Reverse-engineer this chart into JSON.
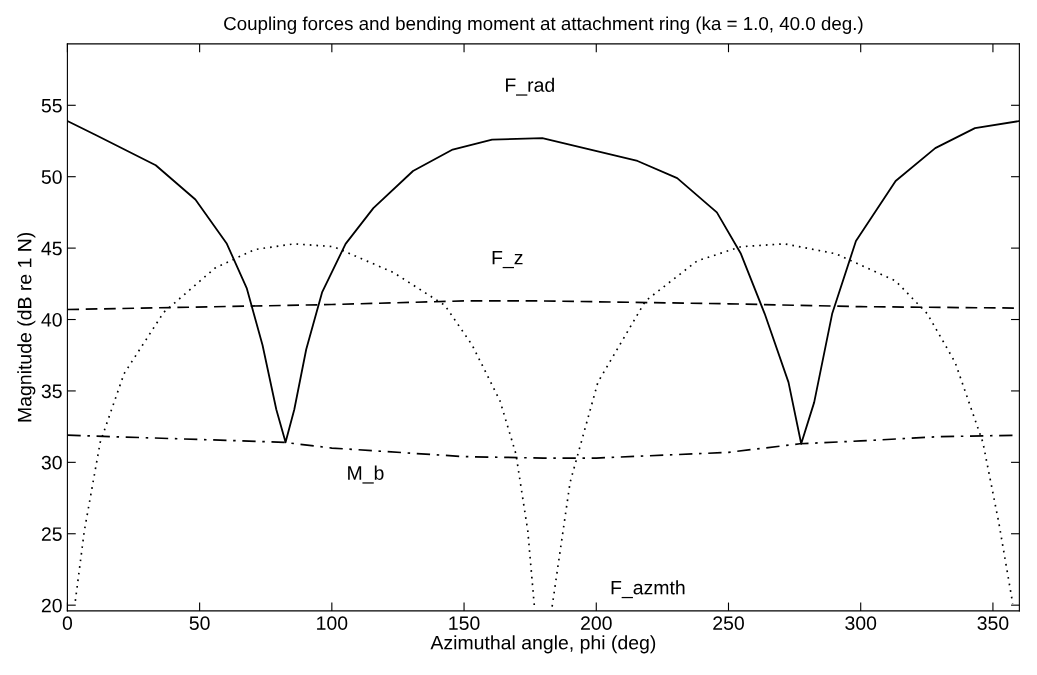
{
  "chart_data": {
    "type": "line",
    "title": "Coupling forces and bending moment at attachment ring (ka = 1.0, 40.0 deg.)",
    "xlabel": "Azimuthal angle, phi (deg)",
    "ylabel": "Magnitude (dB re 1 N)",
    "xlim": [
      0,
      360
    ],
    "ylim": [
      19.6,
      59.3
    ],
    "xticks": [
      0,
      50,
      100,
      150,
      200,
      250,
      300,
      350
    ],
    "yticks": [
      20,
      25,
      30,
      35,
      40,
      45,
      50,
      55
    ],
    "grid": false,
    "legend": false,
    "marker": "none",
    "series": [
      {
        "name": "F_rad",
        "color": "#000000",
        "line_style": "solid",
        "x": [
          0,
          10.9,
          33.4,
          48.4,
          60.3,
          67.8,
          73.8,
          79,
          82.5,
          85.8,
          90.3,
          96.3,
          105.2,
          115.7,
          130.7,
          145.7,
          160.6,
          179.6,
          215.6,
          230.6,
          245.6,
          254.7,
          263.7,
          272.7,
          277.5,
          282.4,
          289.2,
          298.2,
          313.2,
          328.2,
          343.2,
          360
        ],
        "values": [
          53.9,
          52.9,
          50.8,
          48.4,
          45.3,
          42.2,
          38.2,
          33.7,
          31.4,
          33.7,
          37.9,
          41.9,
          45.3,
          47.8,
          50.4,
          51.9,
          52.6,
          52.7,
          51.1,
          49.9,
          47.5,
          44.6,
          40.4,
          35.6,
          31.3,
          34.2,
          40.4,
          45.5,
          49.7,
          52.0,
          53.4,
          53.9
        ]
      },
      {
        "name": "F_azmth",
        "color": "#000000",
        "line_style": "dotted",
        "x": [
          3,
          6.4,
          12.4,
          21.4,
          36.4,
          55.8,
          70.8,
          85.8,
          100.7,
          123.2,
          142.7,
          153.1,
          163.6,
          169.6,
          174.1,
          176.6,
          180,
          183.3,
          190.1,
          200.6,
          218.6,
          238.1,
          254.7,
          271.2,
          290.7,
          313.2,
          325.2,
          335.7,
          346.2,
          352.2,
          357.5
        ],
        "values": [
          20.3,
          25.2,
          31.4,
          36.2,
          40.5,
          43.6,
          44.9,
          45.3,
          45.1,
          43.3,
          41.0,
          38.2,
          34.3,
          30.6,
          25.2,
          19.9,
          null,
          19.9,
          28.6,
          35.6,
          41.3,
          44.1,
          45.1,
          45.3,
          44.6,
          42.7,
          40.4,
          37.0,
          31.4,
          25.8,
          20.1
        ]
      },
      {
        "name": "F_z",
        "color": "#000000",
        "line_style": "dashed",
        "x": [
          0,
          100,
          150,
          180,
          250,
          300,
          360
        ],
        "values": [
          40.7,
          41.05,
          41.3,
          41.3,
          41.1,
          40.9,
          40.8
        ]
      },
      {
        "name": "M_b",
        "color": "#000000",
        "line_style": "dashdot",
        "x": [
          0,
          50,
          82,
          100,
          150,
          180,
          200,
          250,
          277,
          300,
          330,
          360
        ],
        "values": [
          31.9,
          31.6,
          31.4,
          31.0,
          30.4,
          30.3,
          30.3,
          30.7,
          31.3,
          31.5,
          31.8,
          31.9
        ]
      }
    ]
  }
}
